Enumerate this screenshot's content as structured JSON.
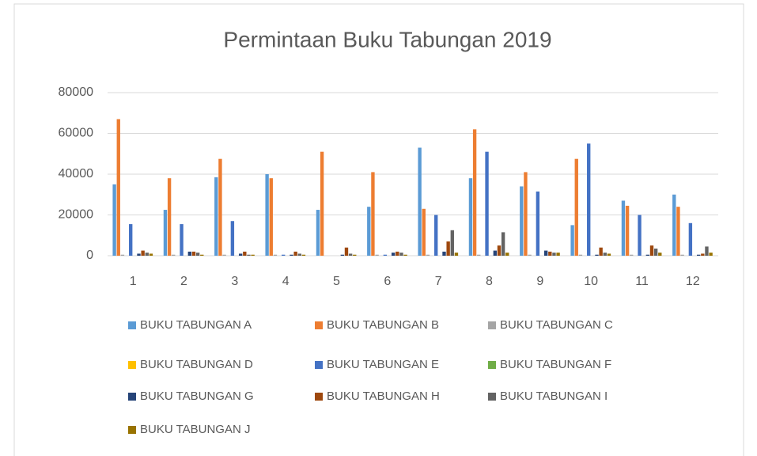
{
  "chart_data": {
    "type": "bar",
    "title": "Permintaan Buku Tabungan 2019",
    "categories": [
      "1",
      "2",
      "3",
      "4",
      "5",
      "6",
      "7",
      "8",
      "9",
      "10",
      "11",
      "12"
    ],
    "series": [
      {
        "name": "BUKU TABUNGAN A",
        "color": "#5b9bd5",
        "values": [
          35000,
          22500,
          38500,
          40000,
          22500,
          24000,
          53000,
          38000,
          34000,
          15000,
          27000,
          30000
        ]
      },
      {
        "name": "BUKU TABUNGAN B",
        "color": "#ed7d31",
        "values": [
          67000,
          38000,
          47500,
          38000,
          51000,
          41000,
          23000,
          62000,
          41000,
          47500,
          24500,
          24000
        ]
      },
      {
        "name": "BUKU TABUNGAN C",
        "color": "#a5a5a5",
        "values": [
          500,
          500,
          500,
          500,
          0,
          500,
          500,
          500,
          500,
          500,
          500,
          500
        ]
      },
      {
        "name": "BUKU TABUNGAN D",
        "color": "#ffc000",
        "values": [
          0,
          0,
          0,
          0,
          0,
          0,
          0,
          0,
          0,
          0,
          0,
          0
        ]
      },
      {
        "name": "BUKU TABUNGAN E",
        "color": "#4472c4",
        "values": [
          15500,
          15500,
          17000,
          500,
          0,
          500,
          20000,
          51000,
          31500,
          55000,
          20000,
          16000
        ]
      },
      {
        "name": "BUKU TABUNGAN F",
        "color": "#70ad47",
        "values": [
          0,
          0,
          0,
          0,
          0,
          0,
          0,
          0,
          0,
          0,
          0,
          0
        ]
      },
      {
        "name": "BUKU TABUNGAN G",
        "color": "#264478",
        "values": [
          1000,
          2000,
          1000,
          500,
          500,
          1500,
          2000,
          2500,
          2500,
          500,
          500,
          500
        ]
      },
      {
        "name": "BUKU TABUNGAN H",
        "color": "#9e480e",
        "values": [
          2500,
          2000,
          2000,
          2000,
          4000,
          2000,
          7000,
          5000,
          2000,
          4000,
          5000,
          1000
        ]
      },
      {
        "name": "BUKU TABUNGAN I",
        "color": "#636363",
        "values": [
          1500,
          1500,
          500,
          1000,
          1000,
          1500,
          12500,
          11500,
          1500,
          1500,
          3500,
          4500
        ]
      },
      {
        "name": "BUKU TABUNGAN J",
        "color": "#997300",
        "values": [
          1000,
          500,
          500,
          500,
          500,
          500,
          1500,
          1500,
          1500,
          1000,
          1500,
          1500
        ]
      }
    ],
    "ylim": [
      0,
      80000
    ],
    "yticks": [
      0,
      20000,
      40000,
      60000,
      80000
    ],
    "grid": true
  }
}
